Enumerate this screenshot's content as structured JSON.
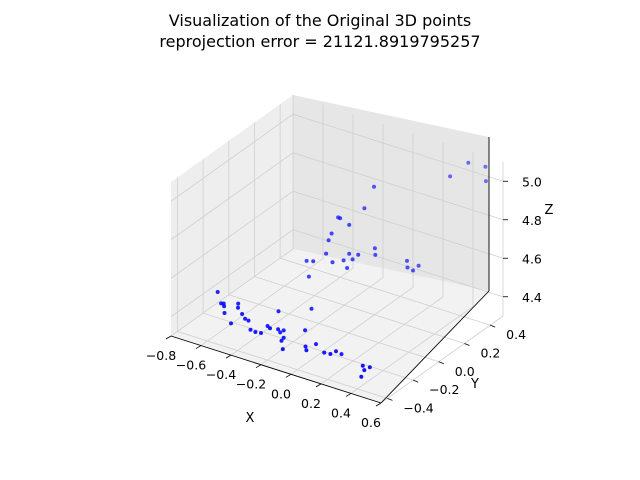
{
  "chart_data": {
    "type": "scatter",
    "title": "Visualization of the Original 3D points",
    "subtitle": "reprojection error = 21121.8919795257",
    "xlabel": "X",
    "ylabel": "Y",
    "zlabel": "Z",
    "xticks": [
      "−0.8",
      "−0.6",
      "−0.4",
      "−0.2",
      "0.0",
      "0.2",
      "0.4",
      "0.6"
    ],
    "yticks": [
      "−0.4",
      "−0.2",
      "0.0",
      "0.2",
      "0.4"
    ],
    "zticks": [
      "4.4",
      "4.6",
      "4.8",
      "5.0"
    ],
    "xlim": [
      -0.8,
      0.6
    ],
    "ylim": [
      -0.45,
      0.5
    ],
    "zlim": [
      4.3,
      5.1
    ],
    "grid": true,
    "point_color": "#0000ff",
    "pane_colors": {
      "floor": "#f2f2f2",
      "left": "#eeeeee",
      "right": "#e6e6e6"
    },
    "points": [
      {
        "x": -0.72,
        "y": -0.18,
        "z": 4.42
      },
      {
        "x": -0.68,
        "y": -0.2,
        "z": 4.38
      },
      {
        "x": -0.68,
        "y": -0.18,
        "z": 4.37
      },
      {
        "x": -0.66,
        "y": -0.2,
        "z": 4.37
      },
      {
        "x": -0.64,
        "y": -0.22,
        "z": 4.35
      },
      {
        "x": -0.6,
        "y": -0.16,
        "z": 4.38
      },
      {
        "x": -0.55,
        "y": -0.22,
        "z": 4.4
      },
      {
        "x": -0.58,
        "y": -0.24,
        "z": 4.32
      },
      {
        "x": -0.54,
        "y": -0.2,
        "z": 4.36
      },
      {
        "x": -0.52,
        "y": -0.2,
        "z": 4.34
      },
      {
        "x": -0.48,
        "y": -0.22,
        "z": 4.35
      },
      {
        "x": -0.45,
        "y": -0.24,
        "z": 4.32
      },
      {
        "x": -0.4,
        "y": -0.26,
        "z": 4.33
      },
      {
        "x": -0.38,
        "y": -0.24,
        "z": 4.32
      },
      {
        "x": -0.37,
        "y": -0.2,
        "z": 4.34
      },
      {
        "x": -0.34,
        "y": -0.15,
        "z": 4.4
      },
      {
        "x": -0.32,
        "y": -0.16,
        "z": 4.3
      },
      {
        "x": -0.32,
        "y": -0.24,
        "z": 4.36
      },
      {
        "x": -0.3,
        "y": -0.2,
        "z": 4.34
      },
      {
        "x": -0.28,
        "y": -0.18,
        "z": 4.33
      },
      {
        "x": -0.26,
        "y": -0.22,
        "z": 4.3
      },
      {
        "x": -0.22,
        "y": -0.25,
        "z": 4.34
      },
      {
        "x": -0.2,
        "y": -0.28,
        "z": 4.3
      },
      {
        "x": -0.18,
        "y": -0.08,
        "z": 4.42
      },
      {
        "x": -0.12,
        "y": -0.2,
        "z": 4.38
      },
      {
        "x": -0.1,
        "y": -0.22,
        "z": 4.31
      },
      {
        "x": -0.06,
        "y": -0.26,
        "z": 4.32
      },
      {
        "x": -0.03,
        "y": -0.22,
        "z": 4.34
      },
      {
        "x": 0.05,
        "y": -0.25,
        "z": 4.33
      },
      {
        "x": 0.1,
        "y": -0.26,
        "z": 4.34
      },
      {
        "x": 0.12,
        "y": -0.24,
        "z": 4.35
      },
      {
        "x": 0.14,
        "y": -0.22,
        "z": 4.33
      },
      {
        "x": 0.35,
        "y": -0.3,
        "z": 4.36
      },
      {
        "x": 0.34,
        "y": -0.3,
        "z": 4.3
      },
      {
        "x": 0.38,
        "y": -0.28,
        "z": 4.35
      },
      {
        "x": 0.36,
        "y": -0.3,
        "z": 4.34
      },
      {
        "x": -0.35,
        "y": 0.08,
        "z": 4.55
      },
      {
        "x": -0.3,
        "y": 0.04,
        "z": 4.5
      },
      {
        "x": -0.28,
        "y": 0.05,
        "z": 4.58
      },
      {
        "x": -0.22,
        "y": 0.08,
        "z": 4.62
      },
      {
        "x": -0.22,
        "y": 0.1,
        "z": 4.68
      },
      {
        "x": -0.2,
        "y": 0.1,
        "z": 4.72
      },
      {
        "x": -0.16,
        "y": 0.06,
        "z": 4.6
      },
      {
        "x": -0.12,
        "y": 0.1,
        "z": 4.6
      },
      {
        "x": -0.1,
        "y": 0.12,
        "z": 4.63
      },
      {
        "x": -0.08,
        "y": 0.08,
        "z": 4.58
      },
      {
        "x": -0.06,
        "y": 0.1,
        "z": 4.62
      },
      {
        "x": -0.04,
        "y": 0.12,
        "z": 4.64
      },
      {
        "x": 0.02,
        "y": 0.18,
        "z": 4.66
      },
      {
        "x": 0.04,
        "y": 0.16,
        "z": 4.64
      },
      {
        "x": 0.2,
        "y": 0.22,
        "z": 4.62
      },
      {
        "x": 0.22,
        "y": 0.2,
        "z": 4.6
      },
      {
        "x": 0.24,
        "y": 0.22,
        "z": 4.58
      },
      {
        "x": 0.26,
        "y": 0.24,
        "z": 4.6
      },
      {
        "x": -0.2,
        "y": 0.15,
        "z": 4.78
      },
      {
        "x": -0.16,
        "y": 0.12,
        "z": 4.8
      },
      {
        "x": -0.1,
        "y": 0.12,
        "z": 4.78
      },
      {
        "x": -0.05,
        "y": 0.18,
        "z": 4.85
      },
      {
        "x": -0.02,
        "y": 0.22,
        "z": 4.95
      },
      {
        "x": 0.35,
        "y": 0.38,
        "z": 5.02
      },
      {
        "x": 0.42,
        "y": 0.44,
        "z": 5.08
      },
      {
        "x": 0.5,
        "y": 0.48,
        "z": 5.06
      },
      {
        "x": 0.52,
        "y": 0.46,
        "z": 5.0
      }
    ]
  }
}
